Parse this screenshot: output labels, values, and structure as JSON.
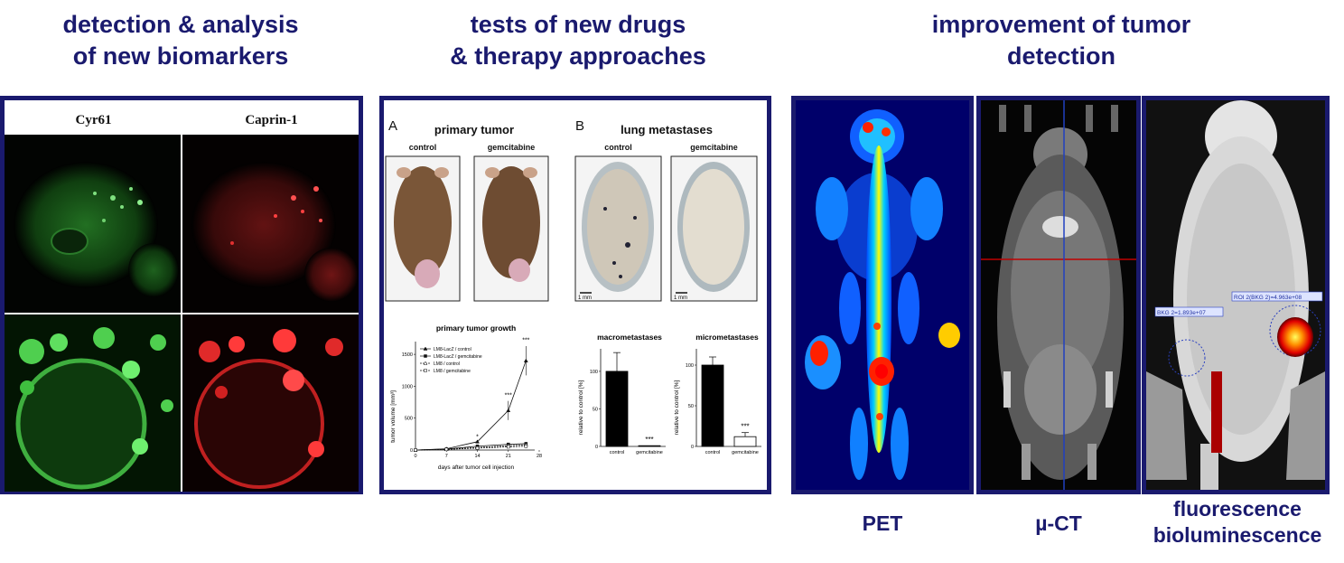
{
  "headings": {
    "biomarkers": "detection & analysis\nof new biomarkers",
    "drugs": "tests of new drugs\n& therapy approaches",
    "detection": "improvement of tumor\ndetection"
  },
  "microscopy": {
    "col1_label": "Cyr61",
    "col2_label": "Caprin-1"
  },
  "drug_panel": {
    "panel_a_letter": "A",
    "panel_a_title": "primary tumor",
    "panel_b_letter": "B",
    "panel_b_title": "lung metastases",
    "control_label": "control",
    "gemcitabine_label": "gemcitabine",
    "scale_bar": "1 mm",
    "growth_chart": {
      "title": "primary tumor growth",
      "ylabel": "tumor volume [mm³]",
      "xlabel": "days after tumor cell injection",
      "yticks": [
        "0",
        "500",
        "1000",
        "1500"
      ],
      "xticks": [
        "0",
        "7",
        "14",
        "21",
        "28"
      ],
      "legend": [
        "LM8-LacZ / control",
        "LM8-LacZ / gemcitabine",
        "LM8 / control",
        "LM8 / gemcitabine"
      ],
      "significance": [
        "*",
        "***",
        "***"
      ]
    },
    "macro_chart": {
      "title": "macrometastases",
      "ylabel": "relative to control [%]",
      "yticks": [
        "0",
        "50",
        "100"
      ],
      "categories": [
        "control",
        "gemcitabine"
      ],
      "significance": "***"
    },
    "micro_chart": {
      "title": "micrometastases",
      "ylabel": "relative to control [%]",
      "yticks": [
        "0",
        "50",
        "100"
      ],
      "categories": [
        "control",
        "gemcitabine"
      ],
      "significance": "***"
    }
  },
  "imaging": {
    "roi_bkg": "BKG 2=1.893e+07",
    "roi_signal": "ROI 2(BKG 2)=4.963e+08"
  },
  "captions": {
    "pet": "PET",
    "ct": "µ-CT",
    "optical": "fluorescence\nbioluminescence"
  },
  "chart_data": [
    {
      "type": "line",
      "title": "primary tumor growth",
      "xlabel": "days after tumor cell injection",
      "ylabel": "tumor volume [mm³]",
      "xlim": [
        0,
        28
      ],
      "ylim": [
        0,
        1700
      ],
      "series": [
        {
          "name": "LM8-LacZ / control",
          "x": [
            0,
            7,
            14,
            21,
            25
          ],
          "y": [
            0,
            20,
            130,
            620,
            1400
          ]
        },
        {
          "name": "LM8-LacZ / gemcitabine",
          "x": [
            0,
            7,
            14,
            21,
            25
          ],
          "y": [
            0,
            15,
            60,
            90,
            100
          ]
        },
        {
          "name": "LM8 / control",
          "x": [
            0,
            7,
            14,
            21,
            25
          ],
          "y": [
            0,
            10,
            40,
            70,
            80
          ]
        },
        {
          "name": "LM8 / gemcitabine",
          "x": [
            0,
            7,
            14,
            21,
            25
          ],
          "y": [
            0,
            10,
            30,
            50,
            60
          ]
        }
      ]
    },
    {
      "type": "bar",
      "title": "macrometastases",
      "ylabel": "relative to control [%]",
      "categories": [
        "control",
        "gemcitabine"
      ],
      "values": [
        100,
        1
      ],
      "ylim": [
        0,
        130
      ]
    },
    {
      "type": "bar",
      "title": "micrometastases",
      "ylabel": "relative to control [%]",
      "categories": [
        "control",
        "gemcitabine"
      ],
      "values": [
        100,
        12
      ],
      "ylim": [
        0,
        120
      ]
    }
  ]
}
